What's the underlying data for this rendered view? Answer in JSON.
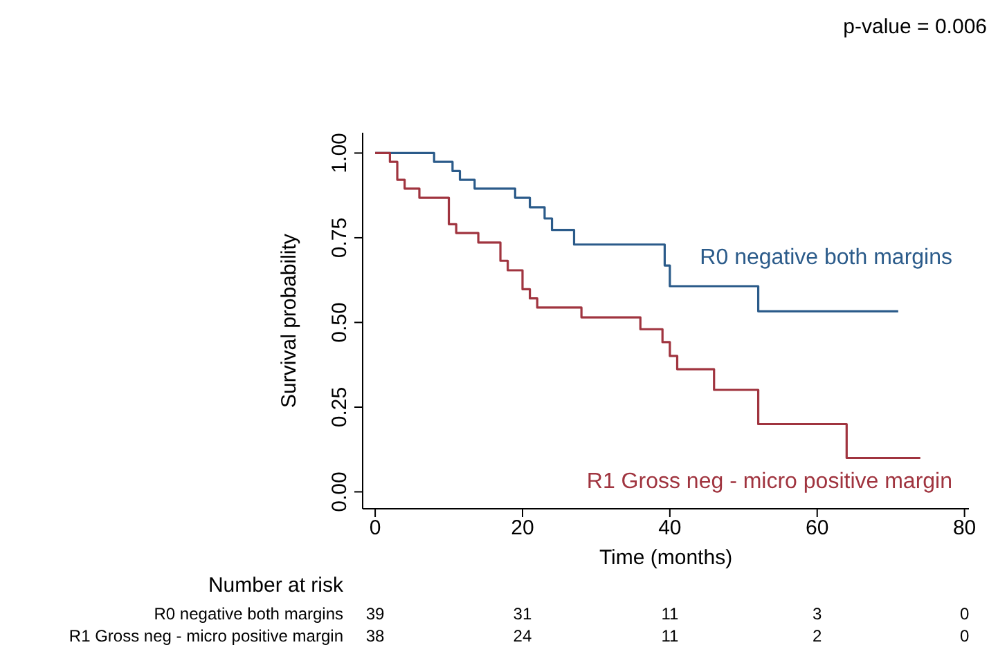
{
  "chart_data": {
    "type": "step",
    "ylabel": "Survival probability",
    "xlabel": "Time (months)",
    "xlim": [
      -1.7,
      80.6
    ],
    "xticks": [
      0,
      20,
      40,
      60,
      80
    ],
    "ylim": [
      -0.05,
      1.06
    ],
    "yticks": [
      {
        "value": 0,
        "label": "0.00"
      },
      {
        "value": 0.25,
        "label": "0.25"
      },
      {
        "value": 0.5,
        "label": "0.50"
      },
      {
        "value": 0.75,
        "label": "0.75"
      },
      {
        "value": 1,
        "label": "1.00"
      }
    ],
    "grid": false,
    "legend": false,
    "marker": "none",
    "line_style": "solid",
    "series": [
      {
        "name": "R0 negative both margins",
        "color": "#2b5b8a",
        "x": [
          0,
          8,
          10.5,
          11.5,
          13.5,
          19,
          21,
          23,
          24,
          27,
          39.3,
          40,
          52,
          71
        ],
        "values": [
          1,
          0.974,
          0.947,
          0.921,
          0.895,
          0.868,
          0.84,
          0.807,
          0.773,
          0.73,
          0.668,
          0.607,
          0.533,
          0.533
        ]
      },
      {
        "name": "R1 Gross neg - micro positive margin",
        "color": "#a0343f",
        "x": [
          0,
          2,
          3,
          4,
          6,
          10,
          11,
          14,
          17,
          18,
          20,
          21,
          22,
          28,
          36,
          39,
          40,
          41,
          46,
          52,
          64,
          74
        ],
        "values": [
          1,
          0.974,
          0.921,
          0.895,
          0.868,
          0.79,
          0.764,
          0.736,
          0.682,
          0.654,
          0.598,
          0.571,
          0.544,
          0.515,
          0.48,
          0.442,
          0.401,
          0.362,
          0.301,
          0.2,
          0.1,
          0.1
        ]
      }
    ],
    "annotations": [
      "p-value = 0.006",
      "Number at risk",
      "39",
      "31",
      "11",
      "3",
      "0",
      "38",
      "24",
      "11",
      "2",
      "0"
    ]
  }
}
